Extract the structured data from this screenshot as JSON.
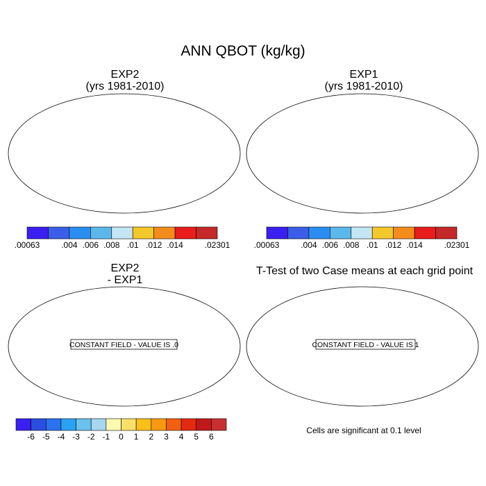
{
  "figure": {
    "title": "ANN QBOT (kg/kg)"
  },
  "panels": [
    {
      "id": "exp2",
      "title_line1": "EXP2",
      "title_line2": "(yrs 1981-2010)"
    },
    {
      "id": "exp1",
      "title_line1": "EXP1",
      "title_line2": "(yrs 1981-2010)"
    },
    {
      "id": "diff",
      "title_line1": "EXP2",
      "title_line2": "- EXP1",
      "annotation": "CONSTANT FIELD - VALUE IS .0"
    },
    {
      "id": "ttest",
      "title_line1": "T-Test of two Case means at each grid point",
      "annotation": "CONSTANT FIELD - VALUE IS 1"
    }
  ],
  "colorbars": {
    "top": {
      "colors": [
        "#3b1ff0",
        "#3a5ee8",
        "#2a8ef0",
        "#5bb8ea",
        "#c4e6f4",
        "#f4c82a",
        "#f48c1c",
        "#ea1c1c",
        "#c42828"
      ],
      "labels": [
        ".00063",
        ".004",
        ".006",
        ".008",
        ".01",
        ".012",
        ".014",
        ".02301"
      ]
    },
    "bottom": {
      "colors": [
        "#3b1ff0",
        "#2a4ee0",
        "#2a72ee",
        "#2aa2f4",
        "#6ac0ee",
        "#a6d6f0",
        "#fafab0",
        "#fae06a",
        "#f8c018",
        "#f89a10",
        "#f46010",
        "#e42a10",
        "#c01818",
        "#c83030"
      ],
      "labels": [
        "-6",
        "-5",
        "-4",
        "-3",
        "-2",
        "-1",
        "0",
        "1",
        "2",
        "3",
        "4",
        "5",
        "6"
      ]
    }
  },
  "significance_note": "Cells are significant at 0.1 level",
  "field_colors": {
    "polar": "#3b4fe4",
    "cool": "#3a7ee8",
    "mild": "#6cb8ea",
    "pale": "#c4e6f4",
    "warm": "#f4c82a",
    "orange": "#f48c1c",
    "hot": "#ea1c1c",
    "tropic": "#c42828"
  }
}
